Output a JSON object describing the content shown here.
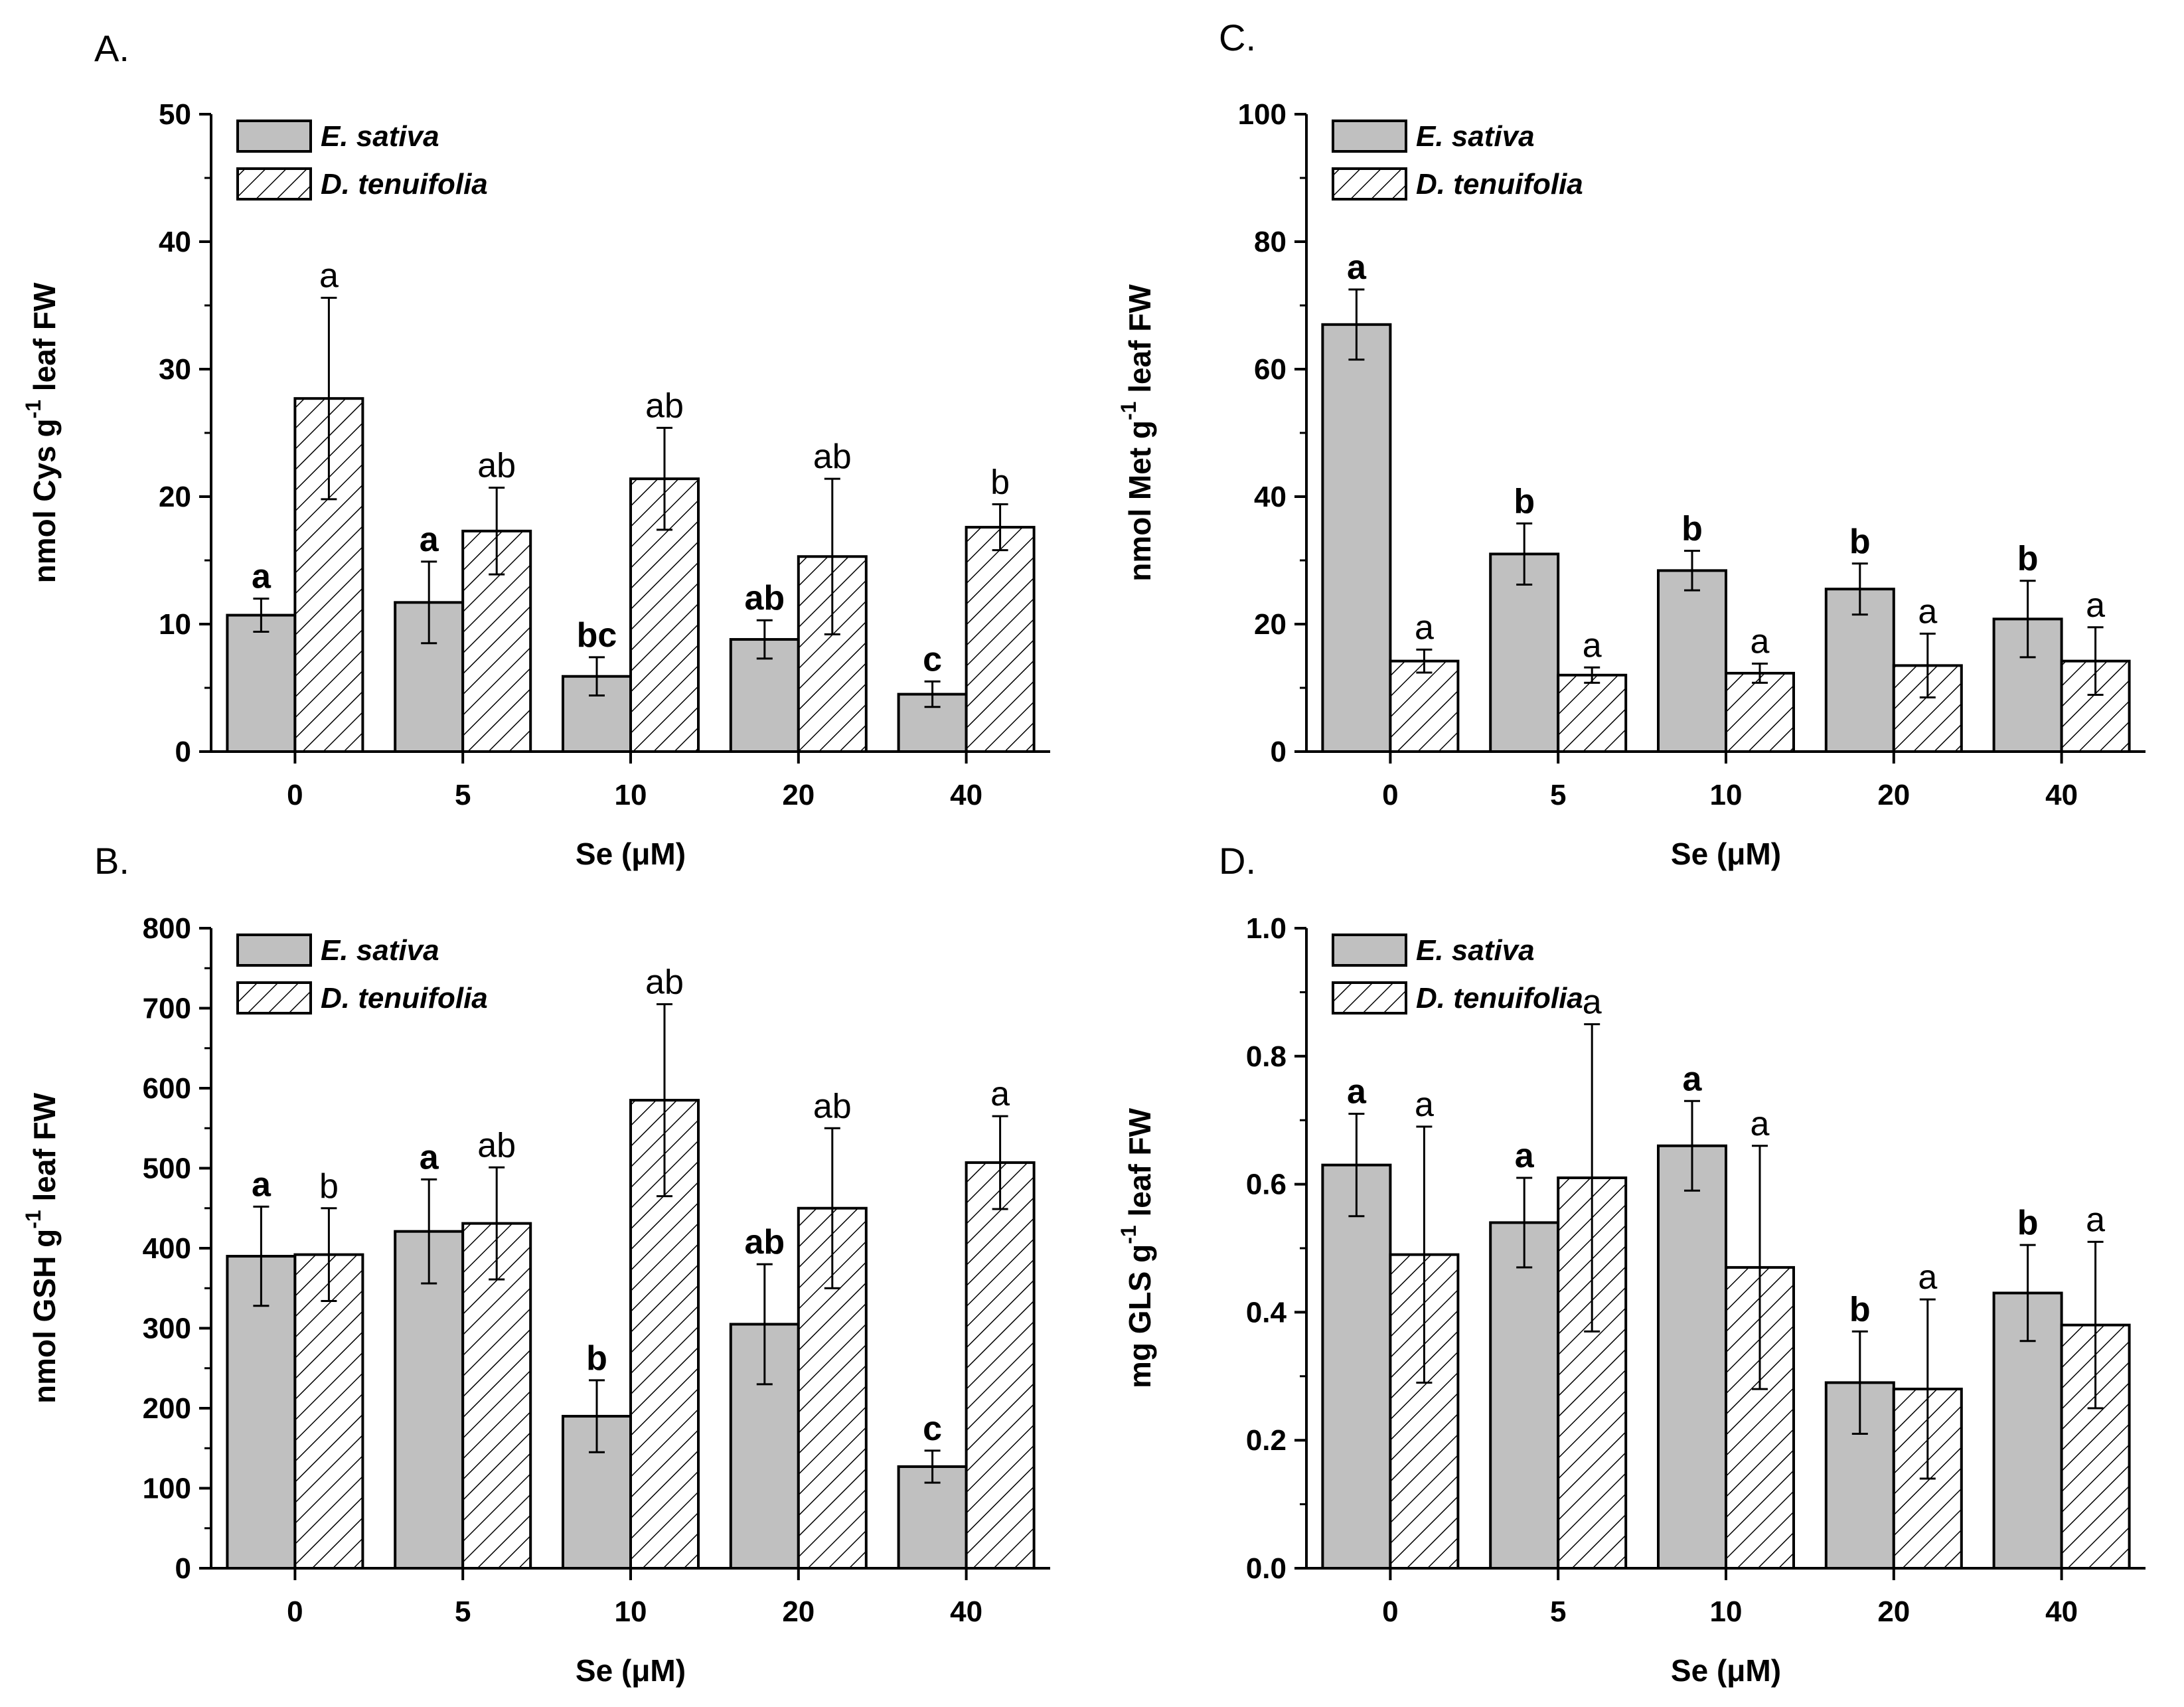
{
  "colors": {
    "solid_bar": "#c0c0c0",
    "hatch_bar": "#ffffff",
    "stroke": "#000000"
  },
  "chart_data": [
    {
      "panel": "A.",
      "type": "bar",
      "categories": [
        "0",
        "5",
        "10",
        "20",
        "40"
      ],
      "xlabel": "Se (μM)",
      "ylabel": "nmol Cys g",
      "ylabel_sup": "-1",
      "ylabel_suffix": " leaf FW",
      "ylim": [
        0,
        50
      ],
      "yticks": [
        "0",
        "10",
        "20",
        "30",
        "40",
        "50"
      ],
      "legend": [
        "E. sativa",
        "D. tenuifolia"
      ],
      "series": [
        {
          "name": "E. sativa",
          "values": [
            10.7,
            11.7,
            5.9,
            8.8,
            4.5
          ],
          "errors": [
            1.3,
            3.2,
            1.5,
            1.5,
            1.0
          ],
          "letters": [
            "a",
            "a",
            "bc",
            "ab",
            "c"
          ]
        },
        {
          "name": "D. tenuifolia",
          "values": [
            27.7,
            17.3,
            21.4,
            15.3,
            17.6
          ],
          "errors": [
            7.9,
            3.4,
            4.0,
            6.1,
            1.8
          ],
          "letters": [
            "a",
            "ab",
            "ab",
            "ab",
            "b"
          ]
        }
      ]
    },
    {
      "panel": "C.",
      "type": "bar",
      "categories": [
        "0",
        "5",
        "10",
        "20",
        "40"
      ],
      "xlabel": "Se (μM)",
      "ylabel": "nmol Met g",
      "ylabel_sup": "-1",
      "ylabel_suffix": " leaf FW",
      "ylim": [
        0,
        100
      ],
      "yticks": [
        "0",
        "20",
        "40",
        "60",
        "80",
        "100"
      ],
      "legend": [
        "E. sativa",
        "D. tenuifolia"
      ],
      "series": [
        {
          "name": "E. sativa",
          "values": [
            67,
            31,
            28.4,
            25.5,
            20.8
          ],
          "errors": [
            5.5,
            4.8,
            3.1,
            4.0,
            6.0
          ],
          "letters": [
            "a",
            "b",
            "b",
            "b",
            "b"
          ]
        },
        {
          "name": "D. tenuifolia",
          "values": [
            14.2,
            12.0,
            12.3,
            13.5,
            14.2
          ],
          "errors": [
            1.8,
            1.2,
            1.5,
            5.0,
            5.3
          ],
          "letters": [
            "a",
            "a",
            "a",
            "a",
            "a"
          ]
        }
      ]
    },
    {
      "panel": "B.",
      "type": "bar",
      "categories": [
        "0",
        "5",
        "10",
        "20",
        "40"
      ],
      "xlabel": "Se (μM)",
      "ylabel": "nmol GSH g",
      "ylabel_sup": "-1",
      "ylabel_suffix": " leaf FW",
      "ylim": [
        0,
        800
      ],
      "yticks": [
        "0",
        "100",
        "200",
        "300",
        "400",
        "500",
        "600",
        "700",
        "800"
      ],
      "legend": [
        "E. sativa",
        "D. tenuifolia"
      ],
      "series": [
        {
          "name": "E. sativa",
          "values": [
            390,
            421,
            190,
            305,
            127
          ],
          "errors": [
            62,
            65,
            45,
            75,
            20
          ],
          "letters": [
            "a",
            "a",
            "b",
            "ab",
            "c"
          ]
        },
        {
          "name": "D. tenuifolia",
          "values": [
            392,
            431,
            585,
            450,
            507
          ],
          "errors": [
            58,
            70,
            120,
            100,
            58
          ],
          "letters": [
            "b",
            "ab",
            "ab",
            "ab",
            "a"
          ]
        }
      ]
    },
    {
      "panel": "D.",
      "type": "bar",
      "categories": [
        "0",
        "5",
        "10",
        "20",
        "40"
      ],
      "xlabel": "Se (μM)",
      "ylabel": "mg GLS g",
      "ylabel_sup": "-1",
      "ylabel_suffix": " leaf FW",
      "ylim": [
        0,
        1.0
      ],
      "yticks": [
        "0.0",
        "0.2",
        "0.4",
        "0.6",
        "0.8",
        "1.0"
      ],
      "legend": [
        "E. sativa",
        "D. tenuifolia"
      ],
      "series": [
        {
          "name": "E. sativa",
          "values": [
            0.63,
            0.54,
            0.66,
            0.29,
            0.43
          ],
          "errors": [
            0.08,
            0.07,
            0.07,
            0.08,
            0.075
          ],
          "letters": [
            "a",
            "a",
            "a",
            "b",
            "b"
          ]
        },
        {
          "name": "D. tenuifolia",
          "values": [
            0.49,
            0.61,
            0.47,
            0.28,
            0.38
          ],
          "errors": [
            0.2,
            0.24,
            0.19,
            0.14,
            0.13
          ],
          "letters": [
            "a",
            "a",
            "a",
            "a",
            "a"
          ]
        }
      ]
    }
  ]
}
